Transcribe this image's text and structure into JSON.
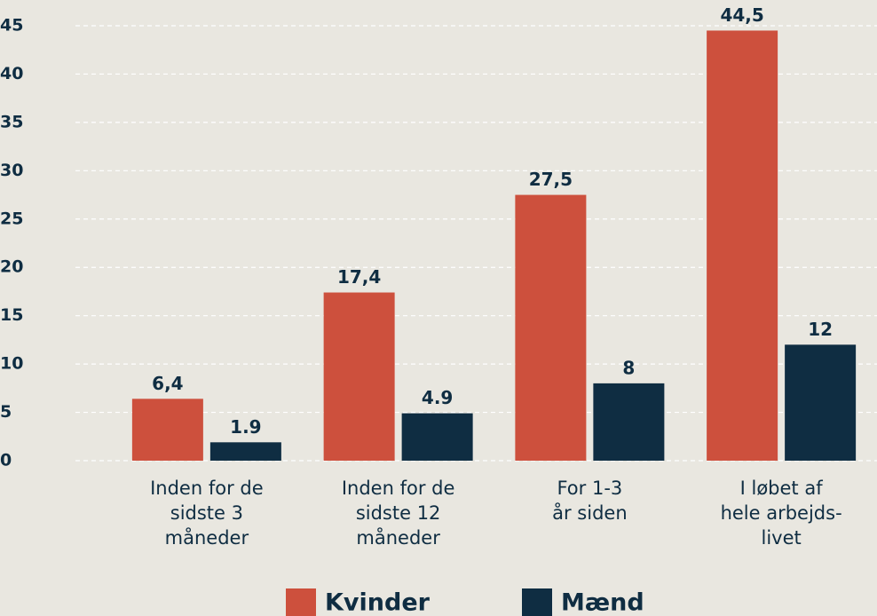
{
  "chart_data": {
    "type": "bar",
    "categories": [
      [
        "Inden for de",
        "sidste 3",
        "måneder"
      ],
      [
        "Inden for de",
        "sidste 12",
        "måneder"
      ],
      [
        "For 1-3",
        "år siden"
      ],
      [
        "I løbet af",
        "hele arbejds-",
        "livet"
      ]
    ],
    "series": [
      {
        "name": "Kvinder",
        "color": "#cd503d",
        "values": [
          6.4,
          17.4,
          27.5,
          44.5
        ],
        "value_labels": [
          "6,4",
          "17,4",
          "27,5",
          "44,5"
        ]
      },
      {
        "name": "Mænd",
        "color": "#0f2d42",
        "values": [
          1.9,
          4.9,
          8,
          12
        ]
      }
    ],
    "ylim": [
      0,
      45
    ],
    "yticks": [
      0,
      5,
      10,
      15,
      20,
      25,
      30,
      35,
      40,
      45
    ],
    "grid": true
  }
}
